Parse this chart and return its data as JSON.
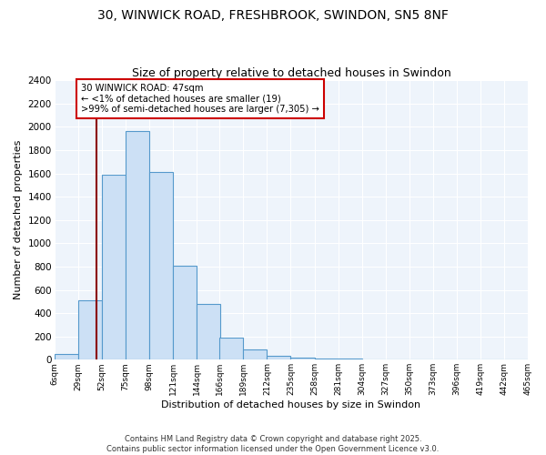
{
  "title": "30, WINWICK ROAD, FRESHBROOK, SWINDON, SN5 8NF",
  "subtitle": "Size of property relative to detached houses in Swindon",
  "xlabel": "Distribution of detached houses by size in Swindon",
  "ylabel": "Number of detached properties",
  "bar_color": "#cce0f5",
  "bar_edge_color": "#5599cc",
  "bg_color": "#eef4fb",
  "grid_color": "#ffffff",
  "vline_x": 47,
  "vline_color": "#8b0000",
  "annotation_title": "30 WINWICK ROAD: 47sqm",
  "annotation_line1": "← <1% of detached houses are smaller (19)",
  "annotation_line2": ">99% of semi-detached houses are larger (7,305) →",
  "annotation_box_edge": "#cc0000",
  "bins_left_edges": [
    6,
    29,
    52,
    75,
    98,
    121,
    144,
    166,
    189,
    212,
    235,
    258,
    281,
    304,
    327,
    350,
    373,
    396,
    419,
    442
  ],
  "bin_width": 23,
  "bar_heights": [
    50,
    510,
    1590,
    1960,
    1610,
    810,
    480,
    190,
    90,
    35,
    20,
    12,
    8,
    4,
    2,
    1,
    0,
    0,
    1,
    0
  ],
  "tick_labels": [
    "6sqm",
    "29sqm",
    "52sqm",
    "75sqm",
    "98sqm",
    "121sqm",
    "144sqm",
    "166sqm",
    "189sqm",
    "212sqm",
    "235sqm",
    "258sqm",
    "281sqm",
    "304sqm",
    "327sqm",
    "350sqm",
    "373sqm",
    "396sqm",
    "419sqm",
    "442sqm",
    "465sqm"
  ],
  "ylim": [
    0,
    2400
  ],
  "yticks": [
    0,
    200,
    400,
    600,
    800,
    1000,
    1200,
    1400,
    1600,
    1800,
    2000,
    2200,
    2400
  ],
  "footer1": "Contains HM Land Registry data © Crown copyright and database right 2025.",
  "footer2": "Contains public sector information licensed under the Open Government Licence v3.0.",
  "figsize": [
    6.0,
    5.0
  ],
  "dpi": 100
}
